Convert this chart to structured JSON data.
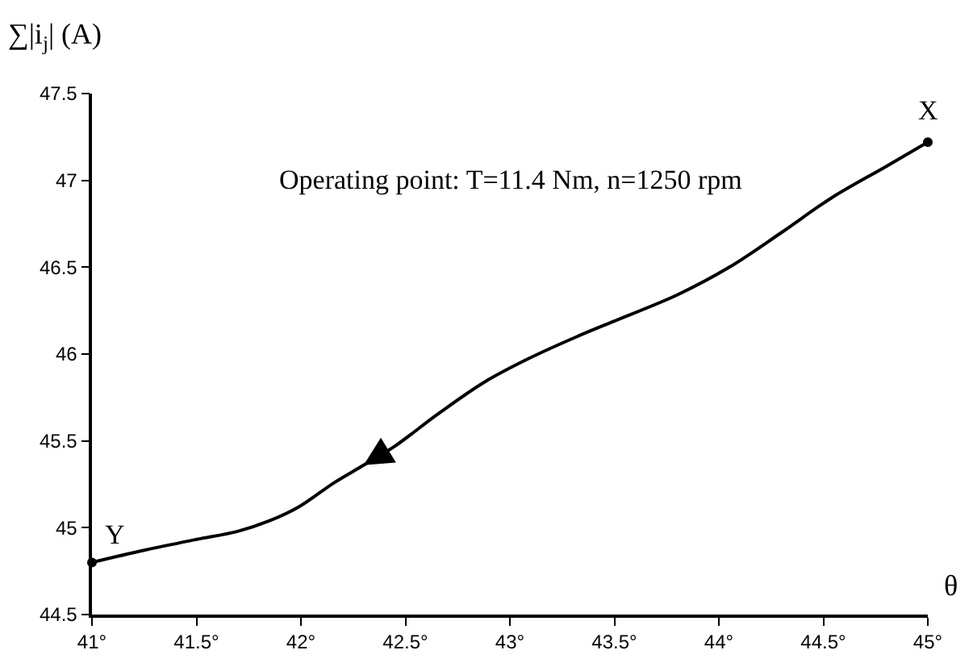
{
  "chart_data": {
    "type": "line",
    "xlabel": "θ",
    "ylabel": "∑|i$_{j}$| (A)",
    "series": [
      {
        "color": "#000000",
        "marker": "none",
        "x": [
          45.0,
          44.8,
          44.54,
          44.3,
          44.05,
          43.8,
          43.5,
          43.32,
          43.1,
          42.88,
          42.65,
          42.45,
          42.3,
          42.16,
          41.99,
          41.85,
          41.7,
          41.49,
          41.25,
          41
        ],
        "values": [
          47.22,
          47.08,
          46.9,
          46.7,
          46.5,
          46.34,
          46.19,
          46.1,
          45.98,
          45.84,
          45.65,
          45.47,
          45.36,
          45.26,
          45.12,
          45.04,
          44.98,
          44.93,
          44.87,
          44.8
        ]
      },
      {
        "type": "scatter",
        "color": "#000000",
        "marker": "circle",
        "x": [
          41,
          45
        ],
        "values": [
          44.8,
          47.22
        ]
      }
    ],
    "annotations": [
      "Operating point: T=11.4 Nm, n=1250 rpm",
      {
        "text": "Y",
        "x": 41,
        "y": 44.8
      },
      {
        "text": "X",
        "x": 45,
        "y": 47.22
      }
    ],
    "xlim": [
      41,
      45
    ],
    "xticks": [
      {
        "value": 41,
        "label": "41°"
      },
      {
        "value": 41.5,
        "label": "41.5°"
      },
      {
        "value": 42,
        "label": "42°"
      },
      {
        "value": 42.5,
        "label": "42.5°"
      },
      {
        "value": 43,
        "label": "43°"
      },
      {
        "value": 43.5,
        "label": "43.5°"
      },
      {
        "value": 44,
        "label": "44°"
      },
      {
        "value": 44.5,
        "label": "44.5°"
      },
      {
        "value": 45,
        "label": "45°"
      }
    ],
    "ylim": [
      44.5,
      47.5
    ],
    "yticks": [
      44.5,
      45,
      45.5,
      46,
      46.5,
      47,
      47.5
    ]
  }
}
